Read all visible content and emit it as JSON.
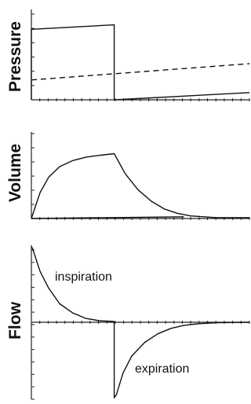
{
  "chart_data": [
    {
      "type": "line",
      "title": "",
      "xlabel": "",
      "ylabel": "Pressure",
      "grid": false,
      "xlim": [
        0,
        1
      ],
      "ylim": [
        0,
        1
      ],
      "series": [
        {
          "style": "solid",
          "x": [
            0,
            0,
            0.38,
            0.38,
            1
          ],
          "y": [
            0,
            0.78,
            0.83,
            0,
            0.08
          ]
        },
        {
          "style": "dashed",
          "x": [
            0,
            1
          ],
          "y": [
            0.22,
            0.4
          ]
        }
      ]
    },
    {
      "type": "line",
      "title": "",
      "xlabel": "",
      "ylabel": "Volume",
      "grid": false,
      "xlim": [
        0,
        1
      ],
      "ylim": [
        0,
        1
      ],
      "series": [
        {
          "style": "solid",
          "x": [
            0,
            0.04,
            0.08,
            0.13,
            0.19,
            0.25,
            0.31,
            0.38,
            0.43,
            0.49,
            0.55,
            0.61,
            0.67,
            0.73,
            0.79,
            0.85,
            1
          ],
          "y": [
            0,
            0.3,
            0.48,
            0.6,
            0.67,
            0.71,
            0.73,
            0.75,
            0.52,
            0.33,
            0.2,
            0.11,
            0.06,
            0.03,
            0.02,
            0.01,
            0.01
          ]
        },
        {
          "style": "solid",
          "x": [
            0,
            0.7
          ],
          "y": [
            0,
            0.02
          ]
        }
      ]
    },
    {
      "type": "line",
      "title": "",
      "xlabel": "",
      "ylabel": "Flow",
      "grid": false,
      "xlim": [
        0,
        1
      ],
      "ylim": [
        -1,
        1
      ],
      "annotations": [
        "inspiration",
        "expiration"
      ],
      "series": [
        {
          "style": "solid",
          "x": [
            0,
            0.005,
            0.04,
            0.08,
            0.13,
            0.19,
            0.25,
            0.31,
            0.38
          ],
          "y": [
            0.98,
            0.96,
            0.66,
            0.44,
            0.24,
            0.12,
            0.05,
            0.02,
            0.01
          ]
        },
        {
          "style": "solid",
          "x": [
            0.38,
            0.38,
            0.39,
            0.42,
            0.46,
            0.52,
            0.58,
            0.64,
            0.7,
            0.76,
            0.85,
            1
          ],
          "y": [
            0.01,
            -0.98,
            -0.94,
            -0.66,
            -0.44,
            -0.26,
            -0.15,
            -0.08,
            -0.04,
            -0.02,
            -0.005,
            0
          ]
        }
      ]
    }
  ]
}
